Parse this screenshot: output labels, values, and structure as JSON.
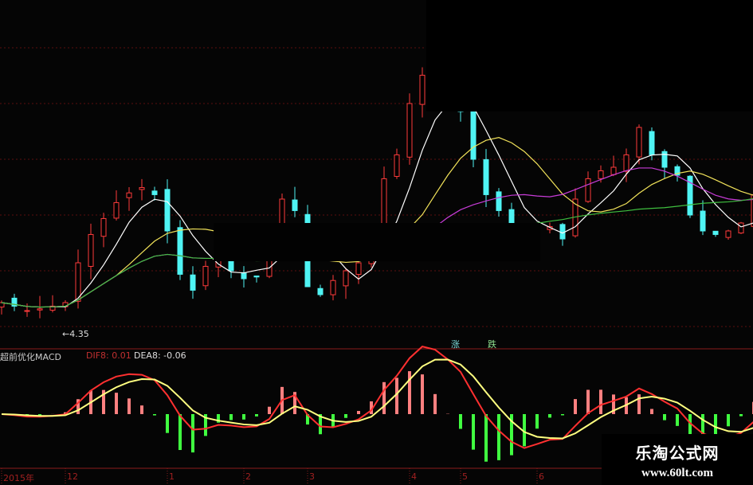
{
  "chart_data": {
    "type": "candlestick",
    "colors": {
      "up": "#ff3b3b",
      "down": "#4ff4f4",
      "ma5": "#ffffff",
      "ma10": "#f2e35a",
      "ma20": "#c83cd8",
      "ma60": "#3fbf3f",
      "dif": "#ff3030",
      "dea": "#ffff80",
      "hist_up": "#ff8080",
      "hist_down": "#40ff40",
      "grid": "#5a0f0f"
    },
    "close": [
      4.53,
      4.49,
      4.44,
      4.46,
      4.49,
      4.53,
      4.98,
      5.3,
      5.48,
      5.66,
      5.77,
      5.83,
      5.75,
      5.34,
      4.85,
      4.67,
      4.94,
      5.03,
      4.89,
      4.8,
      4.82,
      5.07,
      5.7,
      5.57,
      4.71,
      4.62,
      4.78,
      4.89,
      4.98,
      5.25,
      5.93,
      6.2,
      6.78,
      7.1,
      6.96,
      6.83,
      6.69,
      6.15,
      5.75,
      5.57,
      5.34,
      5.21,
      5.39,
      5.39,
      5.25,
      5.7,
      5.93,
      6.02,
      6.06,
      6.2,
      6.51,
      6.2,
      6.06,
      5.97,
      5.52,
      5.34,
      5.3,
      5.34,
      5.43,
      5.75
    ],
    "x_ticks": [
      {
        "label": "2015年",
        "bar": 0
      },
      {
        "label": "12",
        "bar": 5
      },
      {
        "label": "1",
        "bar": 13
      },
      {
        "label": "2",
        "bar": 19
      },
      {
        "label": "3",
        "bar": 24
      },
      {
        "label": "4",
        "bar": 32
      },
      {
        "label": "5",
        "bar": 36
      },
      {
        "label": "6",
        "bar": 42
      }
    ],
    "low_label": "←4.35",
    "signal_labels": {
      "up": "涨",
      "down": "跌"
    },
    "macd": {
      "title": "超前优化MACD",
      "dif_label": "DIF8: 0.01",
      "dea_label": "DEA8: -0.06"
    }
  },
  "watermark": {
    "name": "乐淘公式网",
    "url": "www.60lt.com"
  }
}
